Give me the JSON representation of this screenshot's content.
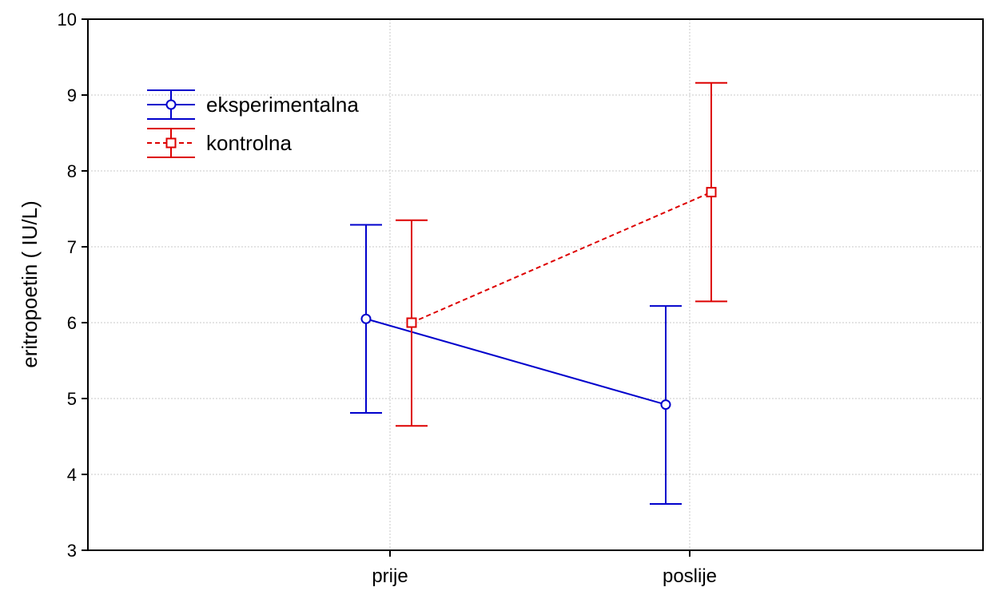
{
  "chart_data": {
    "type": "line",
    "title": "",
    "xlabel": "",
    "ylabel": "eritropoetin  ( IU/L)",
    "categories": [
      "prije",
      "poslije"
    ],
    "ylim": [
      3,
      10
    ],
    "yticks": [
      "3",
      "4",
      "5",
      "6",
      "7",
      "8",
      "9",
      "10"
    ],
    "grid": true,
    "legend_position": "top-left",
    "series": [
      {
        "name": "eksperimentalna",
        "color": "#0000cc",
        "line_style": "solid",
        "marker": "circle",
        "values": [
          6.05,
          4.92
        ],
        "lower": [
          4.81,
          3.61
        ],
        "upper": [
          7.29,
          6.22
        ]
      },
      {
        "name": "kontrolna",
        "color": "#dd0000",
        "line_style": "dashed",
        "marker": "square",
        "values": [
          6.0,
          7.72
        ],
        "lower": [
          4.64,
          6.28
        ],
        "upper": [
          7.35,
          9.16
        ]
      }
    ]
  }
}
